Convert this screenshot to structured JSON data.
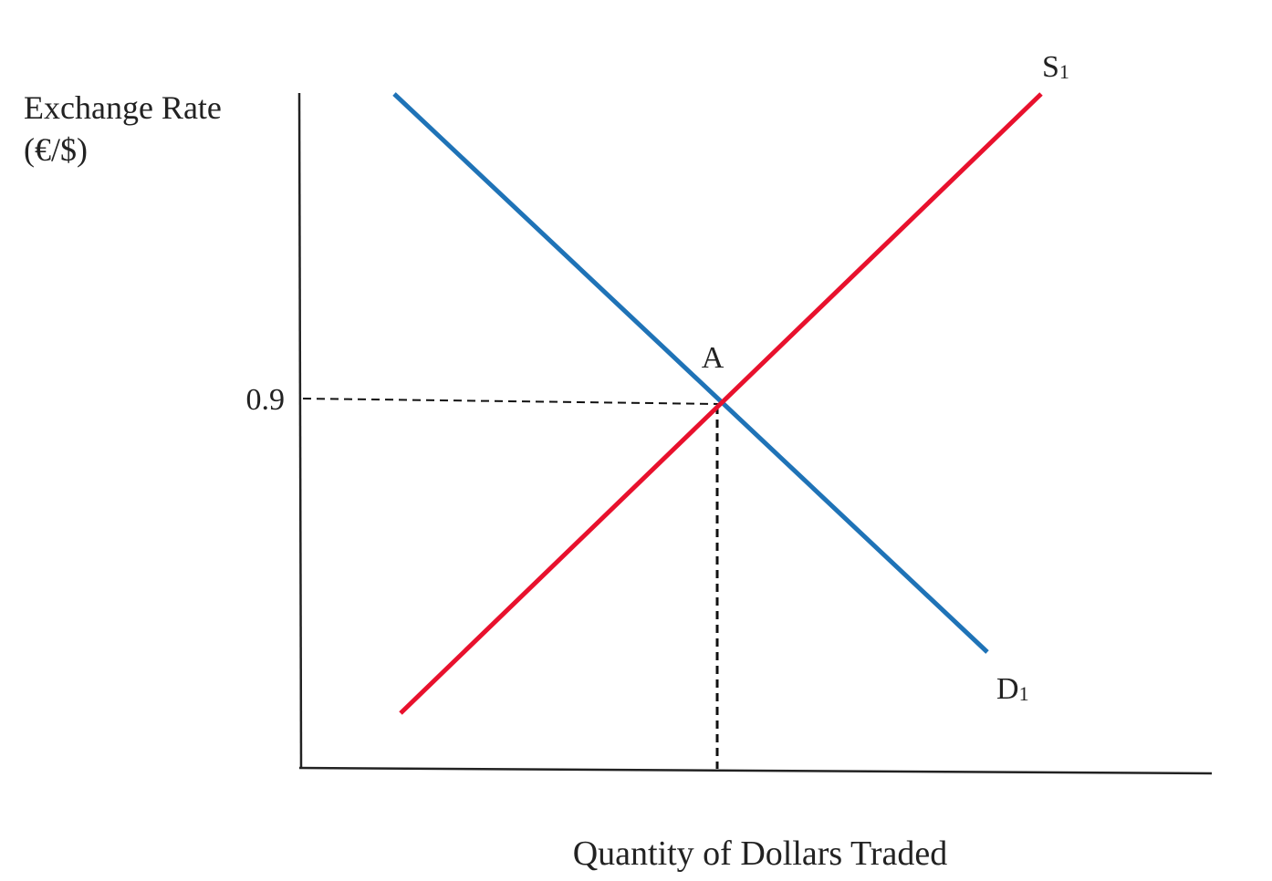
{
  "chart_data": {
    "type": "line",
    "xlabel": "Quantity of Dollars Traded",
    "ylabel_line1": "Exchange Rate",
    "ylabel_line2": "(€/$)",
    "y_tick_label": "0.9",
    "equilibrium": {
      "label": "A",
      "y": 0.9
    },
    "series": [
      {
        "name": "S",
        "subscript": "1",
        "color": "#e8112d",
        "direction": "upward"
      },
      {
        "name": "D",
        "subscript": "1",
        "color": "#1f73b7",
        "direction": "downward"
      }
    ],
    "grid": false,
    "legend": "none"
  }
}
